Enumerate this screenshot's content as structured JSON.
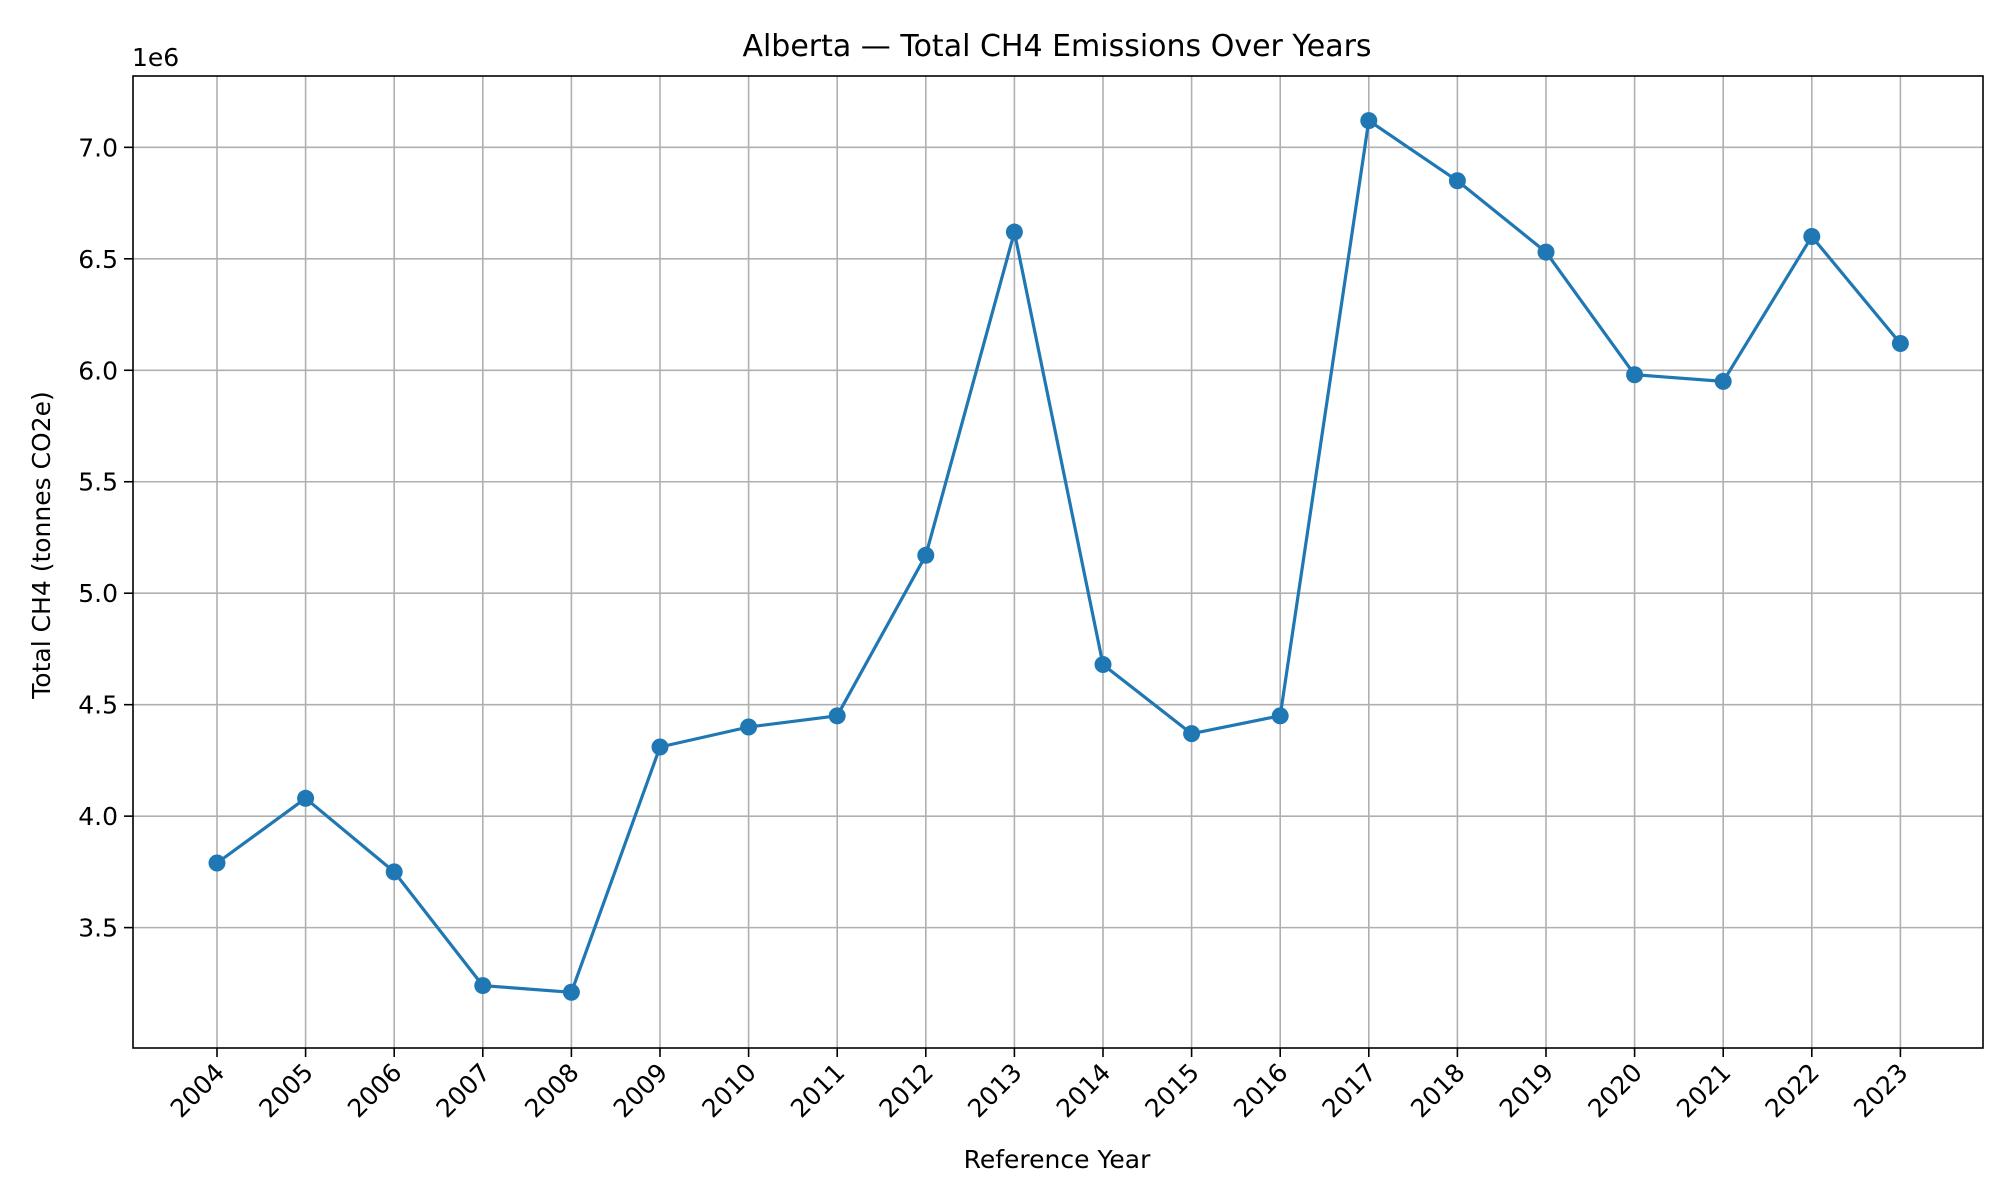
{
  "chart_data": {
    "type": "line",
    "title": "Alberta — Total CH4 Emissions Over Years",
    "xlabel": "Reference Year",
    "ylabel": "Total CH4 (tonnes CO2e)",
    "y_offset_label": "1e6",
    "x": [
      "2004",
      "2005",
      "2006",
      "2007",
      "2008",
      "2009",
      "2010",
      "2011",
      "2012",
      "2013",
      "2014",
      "2015",
      "2016",
      "2017",
      "2018",
      "2019",
      "2020",
      "2021",
      "2022",
      "2023"
    ],
    "y_ticks": [
      "3.5",
      "4.0",
      "4.5",
      "5.0",
      "5.5",
      "6.0",
      "6.5",
      "7.0"
    ],
    "ylim": [
      2.96,
      7.32
    ],
    "grid": true,
    "legend": "none",
    "series": [
      {
        "color": "#1f77b4",
        "values": [
          3.79,
          4.08,
          3.75,
          3.24,
          3.21,
          4.31,
          4.4,
          4.45,
          5.17,
          6.62,
          4.68,
          4.37,
          4.45,
          7.12,
          6.85,
          6.53,
          5.98,
          5.95,
          6.6,
          6.12
        ]
      }
    ]
  }
}
